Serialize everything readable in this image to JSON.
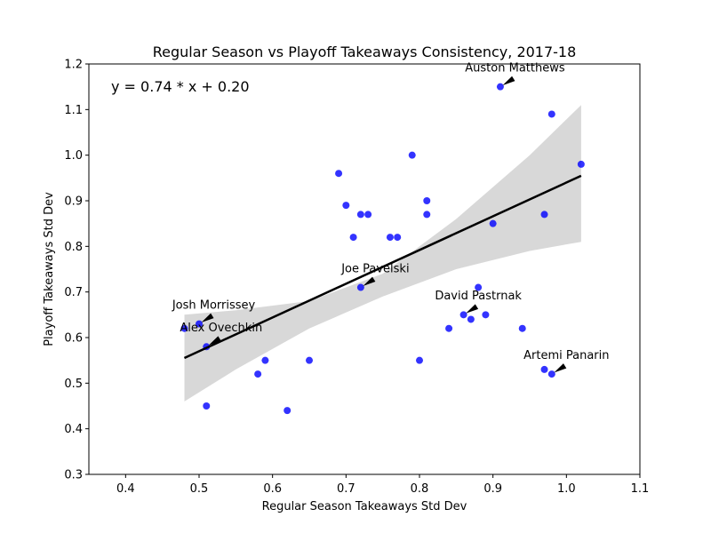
{
  "chart_data": {
    "type": "scatter",
    "title": "Regular Season vs Playoff Takeaways Consistency, 2017-18",
    "xlabel": "Regular Season Takeaways Std Dev",
    "ylabel": "Playoff Takeaways Std Dev",
    "xlim": [
      0.35,
      1.1
    ],
    "ylim": [
      0.3,
      1.2
    ],
    "xticks": [
      "0.4",
      "0.5",
      "0.6",
      "0.7",
      "0.8",
      "0.9",
      "1.0",
      "1.1"
    ],
    "yticks": [
      "0.3",
      "0.4",
      "0.5",
      "0.6",
      "0.7",
      "0.8",
      "0.9",
      "1.0",
      "1.1",
      "1.2"
    ],
    "grid": false,
    "point_color": "#0000ff",
    "regression_color": "#000000",
    "band_color": "#d8d8d8",
    "equation": "y = 0.74 * x + 0.20",
    "regression": {
      "slope": 0.74,
      "intercept": 0.2,
      "x_range": [
        0.48,
        1.02
      ]
    },
    "confidence_band": {
      "x": [
        0.48,
        0.55,
        0.65,
        0.75,
        0.85,
        0.95,
        1.02
      ],
      "lower": [
        0.46,
        0.53,
        0.62,
        0.69,
        0.75,
        0.79,
        0.81
      ],
      "upper": [
        0.65,
        0.66,
        0.68,
        0.74,
        0.86,
        1.0,
        1.11
      ]
    },
    "points": [
      {
        "x": 0.48,
        "y": 0.62
      },
      {
        "x": 0.5,
        "y": 0.63
      },
      {
        "x": 0.51,
        "y": 0.58
      },
      {
        "x": 0.51,
        "y": 0.45
      },
      {
        "x": 0.58,
        "y": 0.52
      },
      {
        "x": 0.59,
        "y": 0.55
      },
      {
        "x": 0.62,
        "y": 0.44
      },
      {
        "x": 0.65,
        "y": 0.55
      },
      {
        "x": 0.69,
        "y": 0.96
      },
      {
        "x": 0.7,
        "y": 0.89
      },
      {
        "x": 0.71,
        "y": 0.82
      },
      {
        "x": 0.72,
        "y": 0.87
      },
      {
        "x": 0.73,
        "y": 0.87
      },
      {
        "x": 0.72,
        "y": 0.71
      },
      {
        "x": 0.76,
        "y": 0.82
      },
      {
        "x": 0.77,
        "y": 0.82
      },
      {
        "x": 0.79,
        "y": 1.0
      },
      {
        "x": 0.81,
        "y": 0.9
      },
      {
        "x": 0.81,
        "y": 0.87
      },
      {
        "x": 0.8,
        "y": 0.55
      },
      {
        "x": 0.84,
        "y": 0.62
      },
      {
        "x": 0.86,
        "y": 0.65
      },
      {
        "x": 0.87,
        "y": 0.64
      },
      {
        "x": 0.88,
        "y": 0.71
      },
      {
        "x": 0.89,
        "y": 0.65
      },
      {
        "x": 0.9,
        "y": 0.85
      },
      {
        "x": 0.91,
        "y": 1.15
      },
      {
        "x": 0.94,
        "y": 0.62
      },
      {
        "x": 0.97,
        "y": 0.87
      },
      {
        "x": 0.97,
        "y": 0.53
      },
      {
        "x": 0.98,
        "y": 1.09
      },
      {
        "x": 0.98,
        "y": 0.52
      },
      {
        "x": 1.02,
        "y": 0.98
      }
    ],
    "annotations": [
      {
        "label": "Auston Matthews",
        "x": 0.91,
        "y": 1.15,
        "text_x": 0.93,
        "text_y": 1.17
      },
      {
        "label": "Joe Pavelski",
        "x": 0.72,
        "y": 0.71,
        "text_x": 0.74,
        "text_y": 0.73
      },
      {
        "label": "David Pastrnak",
        "x": 0.86,
        "y": 0.65,
        "text_x": 0.88,
        "text_y": 0.67
      },
      {
        "label": "Josh Morrissey",
        "x": 0.5,
        "y": 0.63,
        "text_x": 0.52,
        "text_y": 0.65
      },
      {
        "label": "Alex Ovechkin",
        "x": 0.51,
        "y": 0.58,
        "text_x": 0.53,
        "text_y": 0.6
      },
      {
        "label": "Artemi Panarin",
        "x": 0.98,
        "y": 0.52,
        "text_x": 1.0,
        "text_y": 0.54
      }
    ]
  }
}
